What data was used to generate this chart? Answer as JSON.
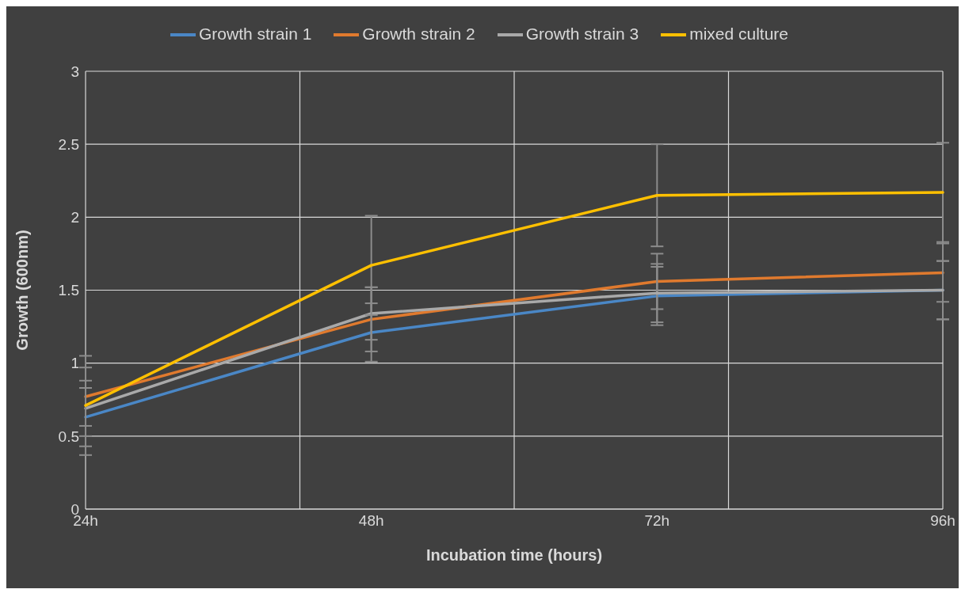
{
  "chart_data": {
    "type": "line",
    "xlabel": "Incubation time (hours)",
    "ylabel": "Growth (600nm)",
    "categories": [
      "24h",
      "48h",
      "72h",
      "96h"
    ],
    "series": [
      {
        "name": "Growth strain 1",
        "color": "#4a87c6",
        "values": [
          0.63,
          1.21,
          1.46,
          1.5
        ],
        "errors": [
          0.2,
          0.2,
          0.2,
          0.2
        ]
      },
      {
        "name": "Growth strain 2",
        "color": "#e07a2e",
        "values": [
          0.77,
          1.3,
          1.56,
          1.62
        ],
        "errors": [
          0.2,
          0.22,
          0.19,
          0.2
        ]
      },
      {
        "name": "Growth strain 3",
        "color": "#a9a9a9",
        "values": [
          0.69,
          1.34,
          1.48,
          1.5
        ],
        "errors": [
          0.19,
          0.18,
          0.2,
          0.2
        ]
      },
      {
        "name": "mixed culture",
        "color": "#ffc000",
        "values": [
          0.71,
          1.67,
          2.15,
          2.17
        ],
        "errors": [
          0.34,
          0.34,
          0.35,
          0.34
        ]
      }
    ],
    "ylim": [
      0,
      3
    ],
    "yticks": [
      0,
      0.5,
      1,
      1.5,
      2,
      2.5,
      3
    ],
    "grid": true,
    "legend": "top",
    "marker": "none",
    "line_style": "solid"
  }
}
